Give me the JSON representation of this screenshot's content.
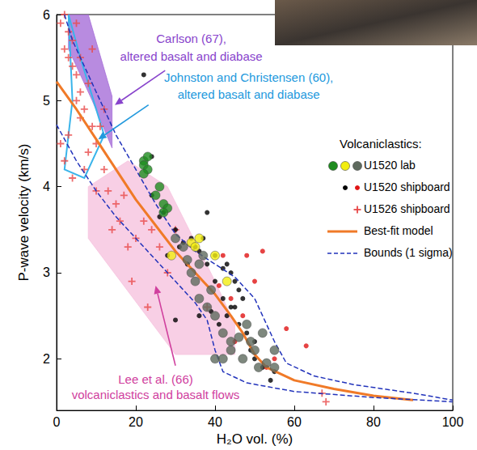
{
  "chart_data": {
    "type": "scatter",
    "x_label": "H₂O vol. (%)",
    "y_label": "P-wave velocity (km/s)",
    "xlim": [
      0,
      100
    ],
    "ylim": [
      1.4,
      6
    ],
    "xticks": [
      0,
      20,
      40,
      60,
      80,
      100
    ],
    "yticks": [
      2,
      3,
      4,
      5,
      6
    ],
    "grid": false,
    "legend": "right",
    "legend_title": "Volcaniclastics:",
    "series": [
      {
        "name": "U1520 lab",
        "type": "scatter",
        "marker": "circle",
        "color": "#1e8c1e",
        "x": [
          22,
          22,
          23,
          22,
          23,
          27,
          28,
          27,
          26,
          25
        ],
        "values": [
          4.3,
          4.25,
          4.2,
          4.15,
          4.35,
          3.8,
          3.75,
          3.7,
          4.0,
          3.9
        ]
      },
      {
        "name": "U1520 lab",
        "type": "scatter",
        "marker": "circle",
        "color": "#f2ee10",
        "x": [
          29,
          34,
          35,
          36,
          40,
          43
        ],
        "values": [
          3.2,
          3.35,
          3.3,
          3.4,
          3.2,
          2.9
        ]
      },
      {
        "name": "U1520 lab",
        "type": "scatter",
        "marker": "circle",
        "color": "#5e6a5e",
        "x": [
          30,
          32,
          33,
          34,
          35,
          36,
          38,
          39,
          40,
          42,
          44,
          46,
          48,
          49,
          50,
          52,
          40,
          42,
          44,
          47,
          51,
          53,
          55,
          55,
          36,
          37
        ],
        "values": [
          3.4,
          3.3,
          3.15,
          3.0,
          2.9,
          2.7,
          2.6,
          2.8,
          2.5,
          2.3,
          2.2,
          2.25,
          2.4,
          2.2,
          2.1,
          2.3,
          2.0,
          2.0,
          2.1,
          2.0,
          1.9,
          1.95,
          2.1,
          1.9,
          3.1,
          3.2
        ]
      },
      {
        "name": "U1520 shipboard",
        "type": "scatter",
        "marker": "dot",
        "color": "#000000",
        "x": [
          22,
          24,
          26,
          27,
          30,
          32,
          34,
          35,
          36,
          38,
          40,
          42,
          44,
          45,
          46,
          40,
          42,
          43,
          44,
          46,
          48,
          50,
          50,
          52,
          54,
          55,
          39,
          41,
          36,
          30,
          38,
          43,
          47,
          49,
          45,
          33,
          28,
          37,
          31,
          24
        ],
        "values": [
          5.3,
          3.9,
          3.65,
          3.7,
          3.5,
          3.35,
          3.4,
          3.3,
          3.25,
          3.1,
          3.2,
          3.05,
          3.0,
          2.9,
          2.8,
          2.9,
          2.7,
          2.5,
          2.6,
          2.4,
          2.3,
          2.2,
          2.0,
          1.9,
          1.75,
          1.85,
          2.55,
          2.4,
          2.5,
          2.45,
          3.7,
          3.1,
          2.7,
          2.1,
          2.6,
          3.1,
          3.2,
          3.4,
          3.3,
          4.35
        ]
      },
      {
        "name": "U1520 shipboard",
        "type": "scatter",
        "marker": "dot",
        "color": "#e01414",
        "x": [
          42,
          48,
          52,
          50,
          44,
          55,
          63,
          47,
          45,
          53,
          41,
          58
        ],
        "values": [
          3.2,
          3.2,
          3.25,
          2.9,
          2.7,
          2.0,
          2.15,
          2.5,
          2.2,
          1.9,
          2.85,
          2.35
        ]
      },
      {
        "name": "U1526 shipboard",
        "type": "scatter",
        "marker": "plus",
        "color": "#e84848",
        "x": [
          1,
          2,
          2,
          3,
          3,
          4,
          4,
          5,
          5,
          6,
          6,
          7,
          8,
          9,
          10,
          11,
          12,
          3,
          2,
          1,
          4,
          6,
          8,
          10,
          12,
          14,
          15,
          16,
          18,
          20,
          22,
          24,
          26,
          28,
          17,
          13,
          19,
          23,
          30,
          38,
          67,
          68,
          5,
          7,
          9
        ],
        "values": [
          5.9,
          6.0,
          5.6,
          5.8,
          5.5,
          5.7,
          5.4,
          5.9,
          5.3,
          5.5,
          5.1,
          4.9,
          5.2,
          4.7,
          4.5,
          4.7,
          4.9,
          4.6,
          4.3,
          4.5,
          4.1,
          4.8,
          4.4,
          3.95,
          4.2,
          3.5,
          3.8,
          3.6,
          3.3,
          3.4,
          3.6,
          3.5,
          3.3,
          3.0,
          3.9,
          3.95,
          2.9,
          2.6,
          3.5,
          2.6,
          1.6,
          1.5,
          5.0,
          4.2,
          5.6
        ]
      },
      {
        "name": "Best-fit model",
        "type": "line",
        "line_style": "solid",
        "color": "#f07a28",
        "x": [
          0,
          5,
          10,
          15,
          20,
          25,
          30,
          35,
          40,
          44,
          47,
          50,
          53,
          60,
          70,
          80,
          90
        ],
        "values": [
          5.22,
          4.9,
          4.55,
          4.2,
          3.85,
          3.55,
          3.25,
          3.0,
          2.75,
          2.5,
          2.3,
          2.05,
          1.9,
          1.75,
          1.65,
          1.57,
          1.52
        ]
      },
      {
        "name": "Bounds (1 sigma)",
        "type": "line",
        "line_style": "dashed",
        "color": "#2233bb",
        "x": [
          2,
          4,
          10,
          15,
          20,
          25,
          30,
          35,
          40,
          45,
          50,
          52,
          55,
          58,
          65,
          75,
          90,
          100
        ],
        "values": [
          6.0,
          5.7,
          5.1,
          4.6,
          4.2,
          3.8,
          3.45,
          3.25,
          3.1,
          2.95,
          2.7,
          2.5,
          2.2,
          1.95,
          1.8,
          1.7,
          1.6,
          1.52
        ]
      },
      {
        "name": "Bounds (1 sigma)",
        "type": "line",
        "line_style": "dashed",
        "color": "#2233bb",
        "x": [
          0,
          5,
          10,
          15,
          20,
          25,
          30,
          35,
          38,
          40,
          42,
          48,
          60,
          80,
          100
        ],
        "values": [
          4.72,
          4.3,
          3.95,
          3.65,
          3.4,
          3.15,
          2.9,
          2.65,
          2.45,
          2.1,
          1.85,
          1.72,
          1.62,
          1.55,
          1.5
        ]
      }
    ],
    "regions": [
      {
        "type": "area",
        "color": "#a66ed8",
        "x": [
          3,
          8,
          14,
          14,
          9,
          3
        ],
        "values": [
          6,
          6,
          5.05,
          4.45,
          5.0,
          5.6
        ]
      },
      {
        "type": "line",
        "color": "#3ab4ea",
        "x": [
          3,
          4,
          2,
          7,
          12,
          6,
          3
        ],
        "values": [
          6,
          5.0,
          4.2,
          4.1,
          4.6,
          5.5,
          6
        ]
      },
      {
        "type": "area",
        "color": "#f6c3df",
        "x": [
          8,
          18,
          28,
          40,
          45,
          45,
          30,
          8
        ],
        "values": [
          4.0,
          4.3,
          4.0,
          2.9,
          2.4,
          2.05,
          2.05,
          3.4
        ]
      }
    ],
    "annotations": [
      {
        "lines": [
          "Carlson (67),",
          "altered basalt and diabase"
        ],
        "color": "#8844cc",
        "x": 34,
        "y": [
          5.72,
          5.52
        ],
        "arrow": {
          "x": [
            27.4,
            14.7
          ],
          "values": [
            5.35,
            4.95
          ]
        }
      },
      {
        "lines": [
          "Johnston and Christensen (60),",
          "altered basalt and diabase"
        ],
        "color": "#2299dd",
        "x": 48.5,
        "y": [
          5.27,
          5.07
        ],
        "arrow": {
          "x": [
            23.2,
            10.5
          ],
          "values": [
            4.95,
            4.55
          ]
        }
      },
      {
        "lines": [
          "Lee et al. (66)",
          "volcaniclastics and basalt flows"
        ],
        "color": "#d0409e",
        "x": 25,
        "y": [
          1.76,
          1.58
        ],
        "arrow": {
          "x": [
            30,
            25
          ],
          "values": [
            1.92,
            2.85
          ]
        }
      }
    ]
  }
}
